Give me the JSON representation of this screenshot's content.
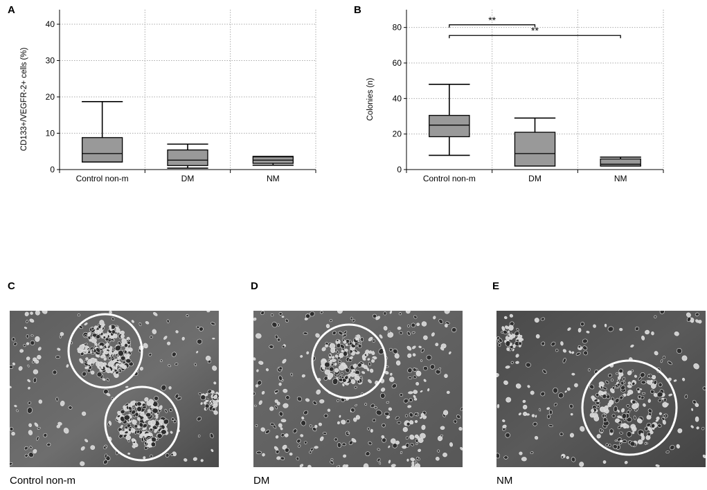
{
  "panels": {
    "A": "A",
    "B": "B",
    "C": "C",
    "D": "D",
    "E": "E"
  },
  "chart_data": [
    {
      "id": "A",
      "type": "box",
      "title": "",
      "xlabel": "",
      "ylabel": "CD133+/VEGFR-2+ cells (%)",
      "categories": [
        "Control non-m",
        "DM",
        "NM"
      ],
      "ylim": [
        0,
        44
      ],
      "yticks": [
        0,
        10,
        20,
        30,
        40
      ],
      "grid": true,
      "box_color": "#999999",
      "boxes": [
        {
          "min": 2.1,
          "q1": 2.1,
          "median": 4.4,
          "q3": 8.8,
          "max": 18.7
        },
        {
          "min": 0.4,
          "q1": 1.1,
          "median": 2.6,
          "q3": 5.4,
          "max": 7.0
        },
        {
          "min": 1.2,
          "q1": 1.7,
          "median": 2.6,
          "q3": 3.5,
          "max": 3.6
        }
      ],
      "annotations": []
    },
    {
      "id": "B",
      "type": "box",
      "title": "",
      "xlabel": "",
      "ylabel": "Colonies (n)",
      "categories": [
        "Control non-m",
        "DM",
        "NM"
      ],
      "ylim": [
        0,
        90
      ],
      "yticks": [
        0,
        20,
        40,
        60,
        80
      ],
      "grid": true,
      "box_color": "#999999",
      "boxes": [
        {
          "min": 8,
          "q1": 18.5,
          "median": 25,
          "q3": 30.5,
          "max": 48
        },
        {
          "min": 2,
          "q1": 2,
          "median": 9,
          "q3": 21,
          "max": 29
        },
        {
          "min": 2,
          "q1": 2,
          "median": 3,
          "q3": 6,
          "max": 7
        }
      ],
      "annotations": [
        {
          "from": 0,
          "to": 1,
          "label": "**",
          "y": 81.5
        },
        {
          "from": 0,
          "to": 2,
          "label": "**",
          "y": 75.5
        }
      ]
    }
  ],
  "photos": [
    {
      "id": "C",
      "caption": "Control non-m"
    },
    {
      "id": "D",
      "caption": "DM"
    },
    {
      "id": "E",
      "caption": "NM"
    }
  ]
}
